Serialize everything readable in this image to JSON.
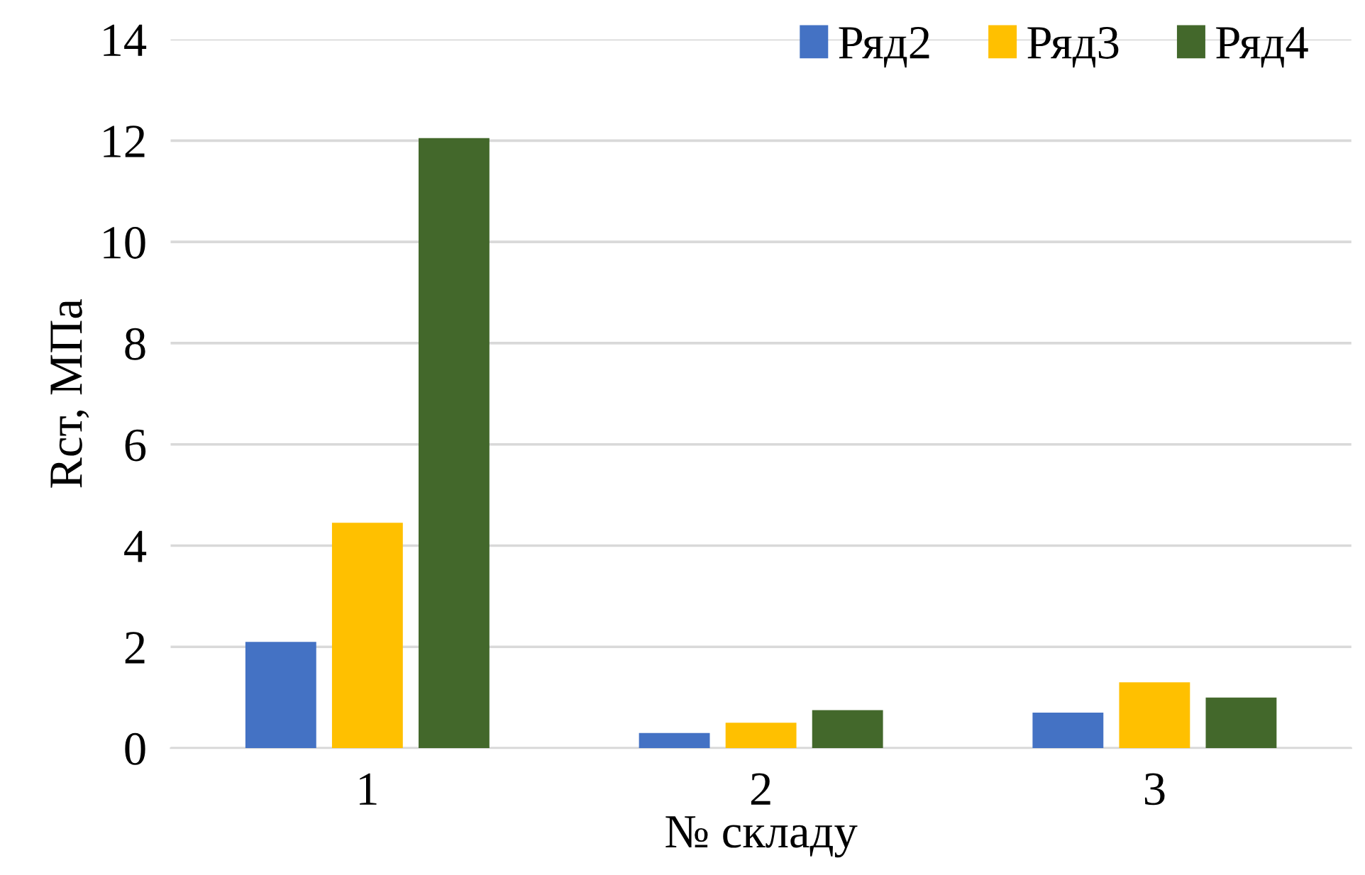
{
  "chart_data": {
    "type": "bar",
    "xlabel": "№ складу",
    "ylabel": "Rст, МПа",
    "categories": [
      "1",
      "2",
      "3"
    ],
    "series": [
      {
        "name": "Ряд2",
        "color": "#4472c4",
        "values": [
          2.1,
          0.3,
          0.7
        ]
      },
      {
        "name": "Ряд3",
        "color": "#ffc000",
        "values": [
          4.45,
          0.5,
          1.3
        ]
      },
      {
        "name": "Ряд4",
        "color": "#43682b",
        "values": [
          12.05,
          0.75,
          1.0
        ]
      }
    ],
    "ylim": [
      0,
      14
    ],
    "yticks": [
      0,
      2,
      4,
      6,
      8,
      10,
      12,
      14
    ],
    "grid": "y",
    "legend": "top right"
  }
}
